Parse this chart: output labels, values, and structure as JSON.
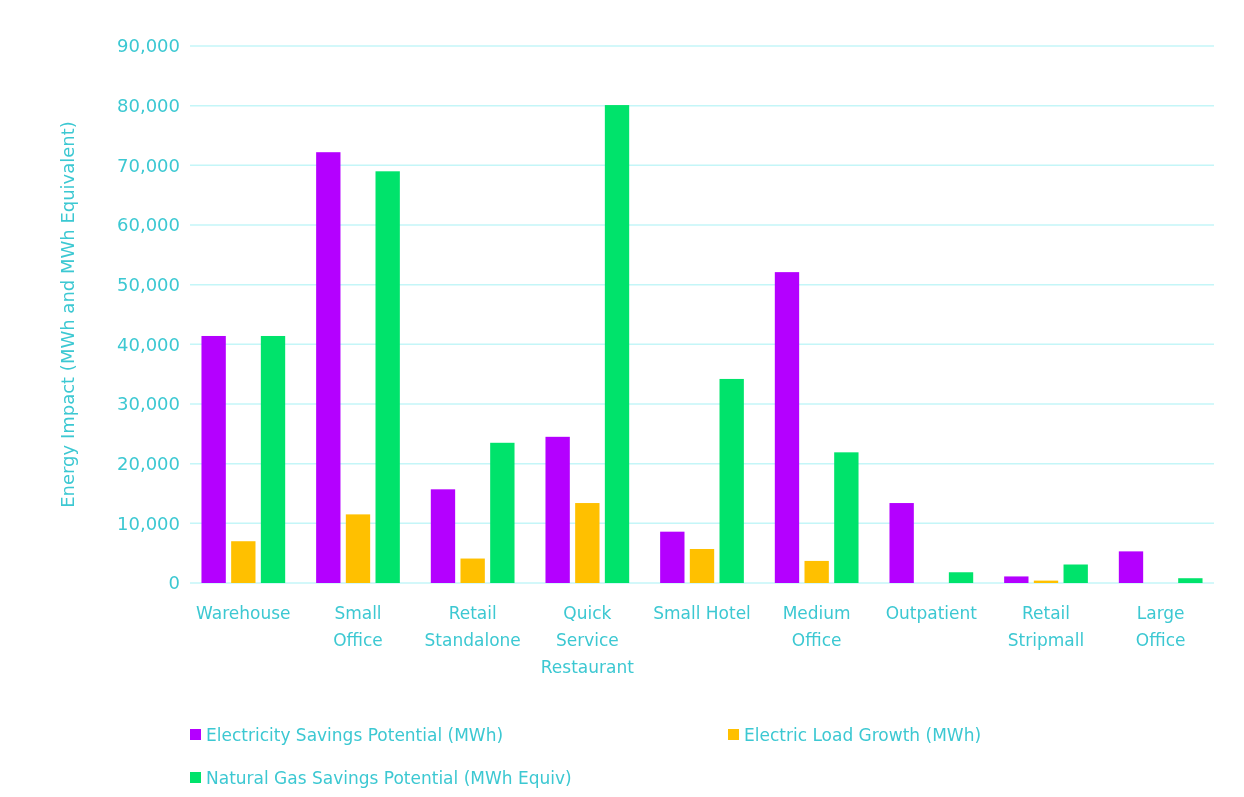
{
  "chart_data": {
    "type": "bar",
    "ylabel": "Energy Impact (MWh and MWh Equivalent)",
    "categories": [
      "Warehouse",
      "Small Office",
      "Retail Standalone",
      "Quick Service Restaurant",
      "Small Hotel",
      "Medium Office",
      "Outpatient",
      "Retail Stripmall",
      "Large Office"
    ],
    "series": [
      {
        "name": "Electricity Savings Potential (MWh)",
        "color": "#b400ff",
        "values": [
          41400,
          72200,
          15700,
          24500,
          8600,
          52100,
          13400,
          1100,
          5300
        ]
      },
      {
        "name": "Electric Load Growth (MWh)",
        "color": "#ffc000",
        "values": [
          7000,
          11500,
          4100,
          13400,
          5700,
          3700,
          0,
          400,
          0
        ]
      },
      {
        "name": "Natural Gas Savings Potential (MWh Equiv)",
        "color": "#00e36b",
        "values": [
          41400,
          69000,
          23500,
          80100,
          34200,
          21900,
          1800,
          3100,
          800
        ]
      }
    ],
    "ylim": [
      0,
      90000
    ],
    "yticks": [
      {
        "value": 0,
        "label": "0"
      },
      {
        "value": 10000,
        "label": "10,000"
      },
      {
        "value": 20000,
        "label": "20,000"
      },
      {
        "value": 30000,
        "label": "30,000"
      },
      {
        "value": 40000,
        "label": "40,000"
      },
      {
        "value": 50000,
        "label": "50,000"
      },
      {
        "value": 60000,
        "label": "60,000"
      },
      {
        "value": 70000,
        "label": "70,000"
      },
      {
        "value": 80000,
        "label": "80,000"
      },
      {
        "value": 90000,
        "label": "90,000"
      }
    ],
    "grid": "y",
    "legend": "bottom"
  }
}
